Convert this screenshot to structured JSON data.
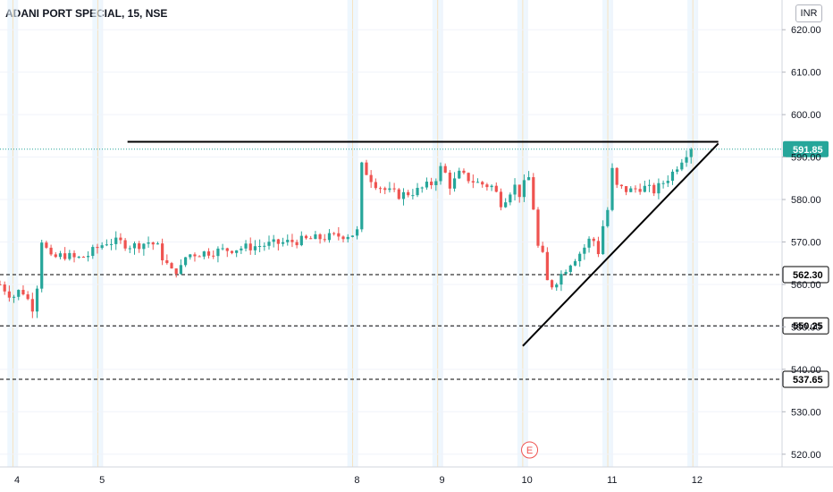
{
  "header": {
    "title": "ADANI PORT SPECIAL, 15, NSE",
    "currency": "INR"
  },
  "colors": {
    "up": "#26a69a",
    "down": "#ef5350",
    "last_price": "#26a69a",
    "grid": "#f0f3fa",
    "text": "#131722"
  },
  "chart_data": {
    "type": "candlestick",
    "ylim": [
      517,
      627
    ],
    "yticks": [
      520,
      530,
      540,
      550,
      560,
      570,
      580,
      590,
      600,
      610,
      620
    ],
    "xlim": [
      3.8,
      13.0
    ],
    "xticks": [
      {
        "value": 4,
        "label": "4"
      },
      {
        "value": 5,
        "label": "5"
      },
      {
        "value": 8,
        "label": "8"
      },
      {
        "value": 9,
        "label": "9"
      },
      {
        "value": 10,
        "label": "10"
      },
      {
        "value": 11,
        "label": "11"
      },
      {
        "value": 12,
        "label": "12"
      }
    ],
    "session_bands": [
      3.95,
      4.95,
      7.95,
      8.95,
      9.95,
      10.95,
      11.95
    ],
    "last_price": {
      "value": 591.85,
      "label": "591.85"
    },
    "levels": [
      {
        "value": 562.3,
        "label": "562.30"
      },
      {
        "value": 550.25,
        "label": "550.25"
      },
      {
        "value": 537.65,
        "label": "537.65"
      }
    ],
    "trendlines": [
      {
        "name": "resistance",
        "x1": 5.3,
        "y1": 593.6,
        "x2": 12.25,
        "y2": 593.6
      },
      {
        "name": "support",
        "x1": 9.95,
        "y1": 545.5,
        "x2": 12.25,
        "y2": 593.2
      }
    ],
    "event_marker": {
      "x": 10.03,
      "label": "E"
    },
    "anchors": [
      [
        3.8,
        560
      ],
      [
        3.95,
        557
      ],
      [
        4.05,
        559
      ],
      [
        4.2,
        554
      ],
      [
        4.25,
        562
      ],
      [
        4.28,
        571
      ],
      [
        4.4,
        566
      ],
      [
        4.55,
        567
      ],
      [
        4.7,
        566
      ],
      [
        4.85,
        567
      ],
      [
        4.9,
        568
      ],
      [
        5.05,
        570
      ],
      [
        5.2,
        570
      ],
      [
        5.35,
        569
      ],
      [
        5.55,
        570
      ],
      [
        5.65,
        569
      ],
      [
        5.72,
        566
      ],
      [
        5.82,
        563
      ],
      [
        5.95,
        564
      ],
      [
        5.97,
        566
      ],
      [
        6.0,
        567
      ],
      [
        8.0,
        572
      ],
      [
        8.05,
        588
      ],
      [
        8.2,
        584
      ],
      [
        8.35,
        582
      ],
      [
        8.5,
        581
      ],
      [
        8.7,
        582
      ],
      [
        8.9,
        584
      ],
      [
        9.0,
        588
      ],
      [
        9.1,
        583
      ],
      [
        9.2,
        586
      ],
      [
        9.4,
        584
      ],
      [
        9.6,
        583
      ],
      [
        9.7,
        579
      ],
      [
        9.8,
        582
      ],
      [
        9.85,
        584
      ],
      [
        9.88,
        580
      ],
      [
        9.95,
        583
      ],
      [
        10.05,
        586
      ],
      [
        10.1,
        570
      ],
      [
        10.2,
        566
      ],
      [
        10.25,
        559
      ],
      [
        10.35,
        561
      ],
      [
        10.5,
        565
      ],
      [
        10.65,
        568
      ],
      [
        10.75,
        571
      ],
      [
        10.8,
        570
      ],
      [
        10.85,
        567
      ],
      [
        10.92,
        578
      ],
      [
        10.98,
        577
      ],
      [
        11.0,
        587
      ],
      [
        11.05,
        583
      ],
      [
        11.2,
        582
      ],
      [
        11.35,
        583
      ],
      [
        11.5,
        582
      ],
      [
        11.6,
        584
      ],
      [
        11.7,
        586
      ],
      [
        11.8,
        589
      ],
      [
        11.87,
        591
      ],
      [
        11.93,
        591.85
      ]
    ],
    "candle_count": 150,
    "seed": 7
  }
}
